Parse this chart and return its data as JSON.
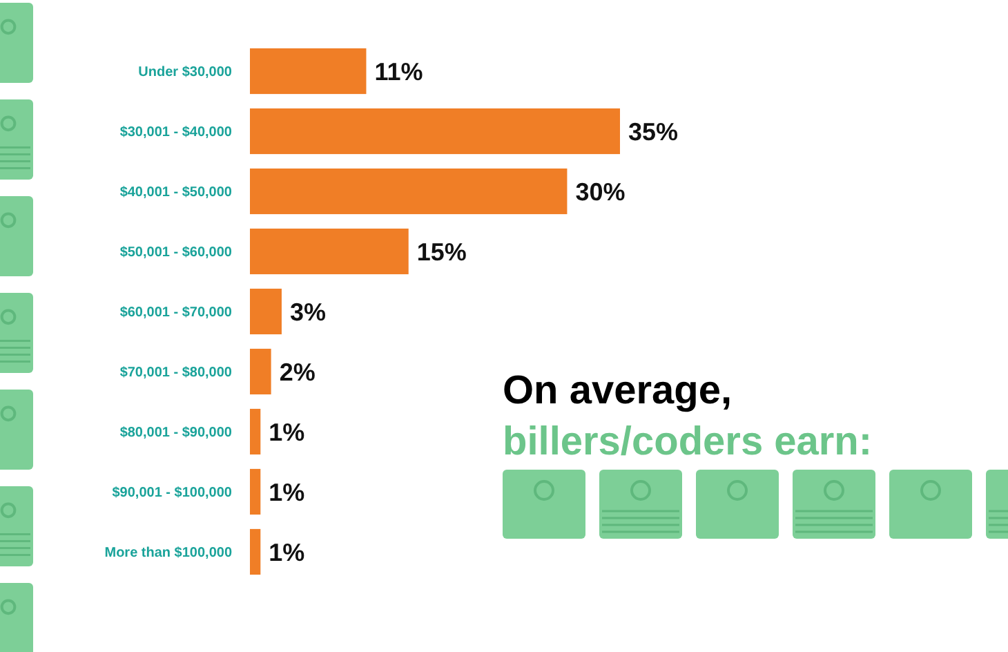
{
  "chart_data": {
    "type": "bar",
    "orientation": "horizontal",
    "categories": [
      "Under $30,000",
      "$30,001 - $40,000",
      "$40,001 - $50,000",
      "$50,001 - $60,000",
      "$60,001 - $70,000",
      "$70,001 - $80,000",
      "$80,001 - $90,000",
      "$90,001 - $100,000",
      "More than $100,000"
    ],
    "values": [
      11,
      35,
      30,
      15,
      3,
      2,
      1,
      1,
      1
    ],
    "value_labels": [
      "11%",
      "35%",
      "30%",
      "15%",
      "3%",
      "2%",
      "1%",
      "1%",
      "1%"
    ],
    "color": "#f07e26",
    "annotations": [
      "On average,",
      "billers/coders earn:"
    ]
  }
}
